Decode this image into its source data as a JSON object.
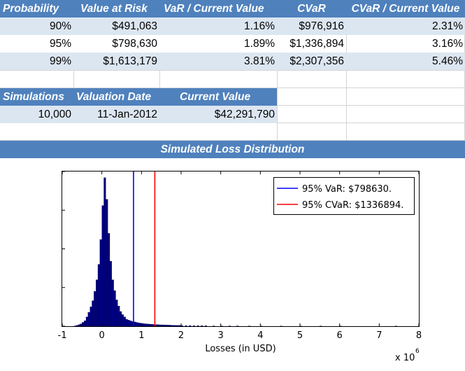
{
  "var_table": {
    "headers": [
      "Probability",
      "Value at Risk",
      "VaR / Current Value",
      "CVaR",
      "CVaR / Current Value"
    ],
    "rows": [
      [
        "90%",
        "$491,063",
        "1.16%",
        "$976,916",
        "2.31%"
      ],
      [
        "95%",
        "$798,630",
        "1.89%",
        "$1,336,894",
        "3.16%"
      ],
      [
        "99%",
        "$1,613,179",
        "3.81%",
        "$2,307,356",
        "5.46%"
      ]
    ]
  },
  "sim_table": {
    "headers": [
      "Simulations",
      "Valuation Date",
      "Current Value"
    ],
    "row": [
      "10,000",
      "11-Jan-2012",
      "$42,291,790"
    ]
  },
  "colors": {
    "header_bg": "#4f81bd",
    "band_bg": "#dce6f1",
    "bars": "#00007f",
    "var_line": "#0000ff",
    "cvar_line": "#ff0000"
  },
  "chart_data": {
    "type": "bar",
    "title": "Simulated Loss Distribution",
    "xlabel": "Losses (in USD)",
    "ylabel": "",
    "x_multiplier_label": "x 10",
    "x_multiplier_exp": "6",
    "xlim": [
      -1,
      8
    ],
    "ylim": [
      0,
      1000
    ],
    "x_ticks": [
      "-1",
      "0",
      "1",
      "2",
      "3",
      "4",
      "5",
      "6",
      "7",
      "8"
    ],
    "bin_width": 0.05,
    "bins": [
      [
        -0.7,
        2
      ],
      [
        -0.65,
        5
      ],
      [
        -0.6,
        10
      ],
      [
        -0.55,
        15
      ],
      [
        -0.5,
        25
      ],
      [
        -0.45,
        35
      ],
      [
        -0.4,
        60
      ],
      [
        -0.35,
        90
      ],
      [
        -0.3,
        125
      ],
      [
        -0.25,
        165
      ],
      [
        -0.2,
        225
      ],
      [
        -0.15,
        300
      ],
      [
        -0.1,
        400
      ],
      [
        -0.05,
        560
      ],
      [
        0.0,
        780
      ],
      [
        0.05,
        960
      ],
      [
        0.1,
        820
      ],
      [
        0.15,
        600
      ],
      [
        0.2,
        420
      ],
      [
        0.25,
        300
      ],
      [
        0.3,
        230
      ],
      [
        0.35,
        170
      ],
      [
        0.4,
        130
      ],
      [
        0.45,
        95
      ],
      [
        0.5,
        75
      ],
      [
        0.55,
        60
      ],
      [
        0.6,
        45
      ],
      [
        0.65,
        40
      ],
      [
        0.7,
        35
      ],
      [
        0.75,
        30
      ],
      [
        0.8,
        28
      ],
      [
        0.85,
        25
      ],
      [
        0.9,
        22
      ],
      [
        0.95,
        20
      ],
      [
        1.0,
        18
      ],
      [
        1.05,
        16
      ],
      [
        1.1,
        15
      ],
      [
        1.15,
        14
      ],
      [
        1.2,
        13
      ],
      [
        1.25,
        12
      ],
      [
        1.3,
        11
      ],
      [
        1.35,
        10
      ],
      [
        1.4,
        10
      ],
      [
        1.45,
        9
      ],
      [
        1.5,
        9
      ],
      [
        1.55,
        8
      ],
      [
        1.6,
        8
      ],
      [
        1.65,
        7
      ],
      [
        1.7,
        7
      ],
      [
        1.75,
        6
      ],
      [
        1.8,
        6
      ],
      [
        1.85,
        5
      ],
      [
        1.9,
        5
      ],
      [
        1.95,
        5
      ],
      [
        2.0,
        4
      ],
      [
        2.1,
        4
      ],
      [
        2.2,
        4
      ],
      [
        2.3,
        3
      ],
      [
        2.4,
        3
      ],
      [
        2.5,
        3
      ],
      [
        2.6,
        3
      ],
      [
        2.8,
        2
      ],
      [
        3.0,
        2
      ],
      [
        3.2,
        2
      ],
      [
        3.4,
        2
      ],
      [
        3.7,
        1
      ],
      [
        4.0,
        1
      ],
      [
        4.5,
        1
      ],
      [
        5.0,
        1
      ],
      [
        5.5,
        1
      ],
      [
        6.0,
        1
      ],
      [
        7.4,
        1
      ]
    ],
    "vlines": [
      {
        "label": "95% VaR: $798630.",
        "x": 0.79863,
        "color": "#0000ff"
      },
      {
        "label": "95% CVaR: $1336894.",
        "x": 1.336894,
        "color": "#ff0000"
      }
    ],
    "legend": "top-right"
  }
}
